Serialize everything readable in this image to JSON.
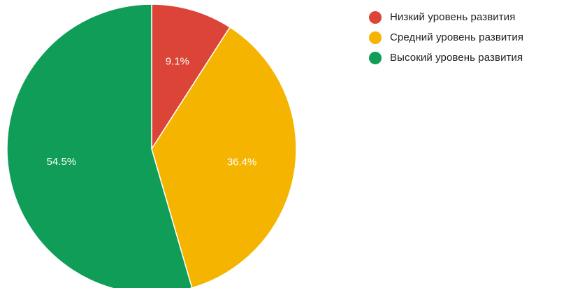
{
  "chart_data": {
    "type": "pie",
    "title": "",
    "legend_position": "right",
    "series": [
      {
        "name": "Низкий уровень развития",
        "label": "9.1%",
        "value": 9.1,
        "color": "#db4437"
      },
      {
        "name": "Средний уровень развития",
        "label": "36.4%",
        "value": 36.4,
        "color": "#f4b400"
      },
      {
        "name": "Высокий уровень развития",
        "label": "54.5%",
        "value": 54.5,
        "color": "#0f9d58"
      }
    ]
  }
}
